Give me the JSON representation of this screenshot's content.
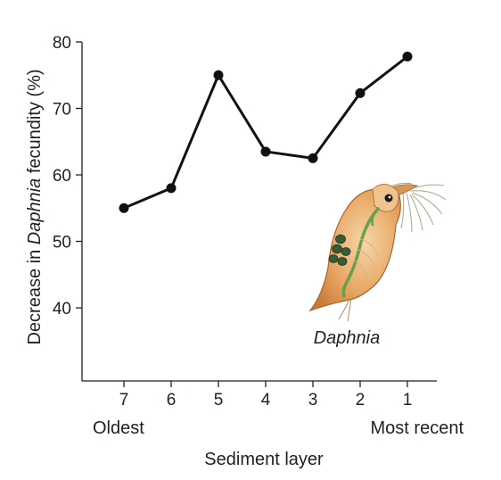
{
  "chart_data": {
    "type": "line",
    "title": "",
    "xlabel": "Sediment layer",
    "ylabel_parts": [
      "Decrease in ",
      "Daphnia",
      " fecundity (%)"
    ],
    "categories": [
      "7",
      "6",
      "5",
      "4",
      "3",
      "2",
      "1"
    ],
    "series": [
      {
        "values": [
          55,
          58,
          75,
          63.5,
          62.5,
          72.3,
          77.8
        ]
      }
    ],
    "ylim": [
      29,
      80
    ],
    "yticks": [
      40,
      50,
      60,
      70,
      80
    ],
    "x_end_labels": {
      "left": "Oldest",
      "right": "Most recent"
    },
    "grid": false,
    "legend": "none",
    "line_color": "#111111"
  },
  "illustration": {
    "caption": "Daphnia",
    "icon": "daphnia-illustration"
  }
}
